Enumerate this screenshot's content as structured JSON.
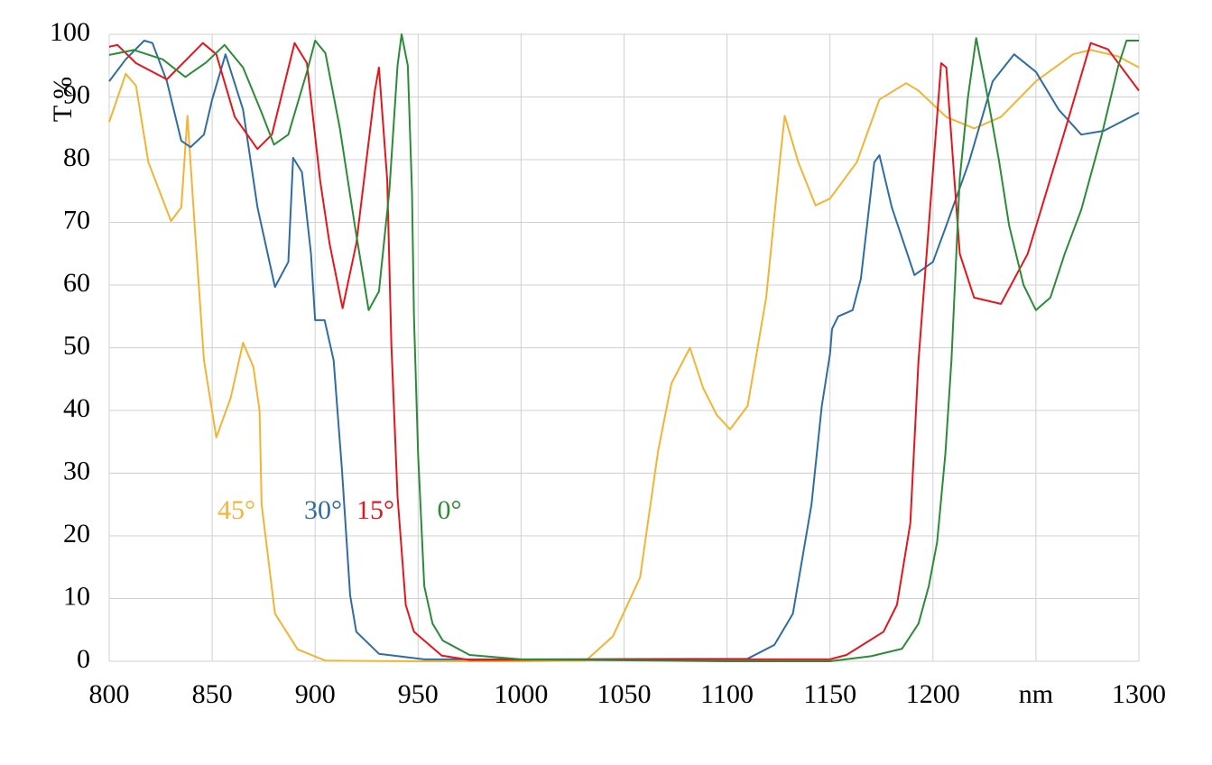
{
  "chart_data": {
    "type": "line",
    "y_label": "T %",
    "xlim": [
      800,
      1300
    ],
    "xticks": [
      800,
      850,
      900,
      950,
      1000,
      1050,
      1100,
      1150,
      1200,
      {
        "value": 1250,
        "label": "nm"
      },
      1300
    ],
    "ylim": [
      0,
      100
    ],
    "yticks": [
      0,
      10,
      20,
      30,
      40,
      50,
      60,
      70,
      80,
      90,
      100
    ],
    "grid": true,
    "series": [
      {
        "name": "45°",
        "color": "#f5b335",
        "x": [
          800,
          808,
          813,
          819,
          830,
          835,
          838,
          841.5,
          846,
          852,
          859,
          865,
          870,
          873,
          874,
          880.5,
          891.5,
          905,
          950,
          1000,
          1031.5,
          1044.6,
          1057.8,
          1066.5,
          1073,
          1082,
          1088.4,
          1095,
          1101.5,
          1110,
          1119,
          1125.6,
          1128,
          1134.6,
          1143,
          1150,
          1163,
          1174,
          1187,
          1193,
          1206.5,
          1220,
          1233,
          1250,
          1268,
          1276.6,
          1289.7,
          1300
        ],
        "values": [
          86,
          93.7,
          91.8,
          79.6,
          70.2,
          72.4,
          87,
          69.5,
          48,
          35.7,
          42,
          50.8,
          47,
          40,
          25,
          7.6,
          1.9,
          0.1,
          0,
          0,
          0.1,
          4,
          13.4,
          33.5,
          44.3,
          50,
          43.6,
          39.3,
          37,
          40.7,
          58,
          79.6,
          87,
          79.6,
          72.7,
          73.8,
          79.6,
          89.6,
          92.2,
          91,
          86.8,
          85,
          86.8,
          92.5,
          96.8,
          97.5,
          96.5,
          94.7
        ]
      },
      {
        "name": "30°",
        "color": "#2e6da4",
        "x": [
          800,
          808,
          817,
          821,
          828,
          835,
          839.5,
          846,
          850,
          856.5,
          865,
          872,
          880.5,
          887,
          889.3,
          893.6,
          898,
          900,
          904.6,
          909,
          913,
          917,
          920,
          931,
          953,
          1000,
          1110,
          1123,
          1132,
          1141,
          1146,
          1150,
          1151,
          1154,
          1161,
          1165,
          1171.5,
          1174,
          1180,
          1191,
          1200,
          1206.5,
          1217.5,
          1229,
          1239.4,
          1250,
          1261,
          1272,
          1283,
          1300
        ],
        "values": [
          92.5,
          96,
          99,
          98.6,
          92.5,
          83,
          82,
          84,
          89.6,
          96.8,
          88,
          72.4,
          59.7,
          63.7,
          80.3,
          78,
          65,
          54.4,
          54.4,
          48,
          30.6,
          10.5,
          4.7,
          1.2,
          0.3,
          0.3,
          0.4,
          2.6,
          7.6,
          25,
          40.7,
          49,
          53,
          55,
          56,
          61,
          79.6,
          80.7,
          72.4,
          61.6,
          63.7,
          69.5,
          79.6,
          92.5,
          96.8,
          94,
          88,
          84,
          84.6,
          87.5
        ]
      },
      {
        "name": "15°",
        "color": "#e8141c",
        "x": [
          800,
          804,
          813,
          828,
          845.5,
          852,
          861,
          872,
          879,
          890,
          896,
          902.4,
          907,
          913.3,
          920,
          929,
          931,
          935,
          937,
          940,
          944,
          948,
          961.5,
          975,
          1050,
          1150,
          1158,
          1176,
          1182.5,
          1189,
          1193,
          1198,
          1204,
          1206.5,
          1213,
          1220,
          1233,
          1246,
          1263.5,
          1276.6,
          1285,
          1300
        ],
        "values": [
          98,
          98.3,
          95.4,
          92.8,
          98.6,
          96.8,
          86.8,
          81.7,
          84,
          98.6,
          95.4,
          76.7,
          66.6,
          56.3,
          66.6,
          91,
          94.7,
          76.7,
          50.8,
          26.3,
          9,
          4.7,
          0.9,
          0.2,
          0.3,
          0.3,
          1,
          4.7,
          9,
          22,
          48,
          69.5,
          95.4,
          94.7,
          65,
          58,
          57,
          65,
          84,
          98.6,
          97.6,
          91
        ]
      },
      {
        "name": "0°",
        "color": "#2a8c36",
        "x": [
          800,
          812,
          826,
          837,
          847,
          856,
          865,
          874,
          880,
          887,
          896,
          900,
          905,
          912,
          919,
          926,
          931,
          936,
          940,
          942,
          945,
          947,
          948,
          950,
          953,
          957,
          962,
          975,
          1000,
          1100,
          1150,
          1170,
          1185,
          1193,
          1198,
          1202,
          1206,
          1209,
          1213,
          1217,
          1221,
          1226,
          1232,
          1237,
          1244,
          1250,
          1257,
          1264,
          1272,
          1282,
          1290,
          1294,
          1300
        ],
        "values": [
          96.7,
          97.5,
          96,
          93.2,
          95.5,
          98.3,
          94.7,
          87.5,
          82.4,
          84,
          94,
          99,
          97,
          85,
          70,
          56,
          59,
          75,
          95,
          100,
          95,
          75,
          55,
          33,
          12,
          6,
          3.3,
          1,
          0.3,
          0,
          0,
          0.8,
          2,
          6,
          12,
          19,
          33,
          48,
          77,
          90,
          99.4,
          91,
          80,
          69.5,
          60,
          56,
          58,
          65,
          72,
          84,
          95,
          99,
          99
        ]
      }
    ]
  }
}
